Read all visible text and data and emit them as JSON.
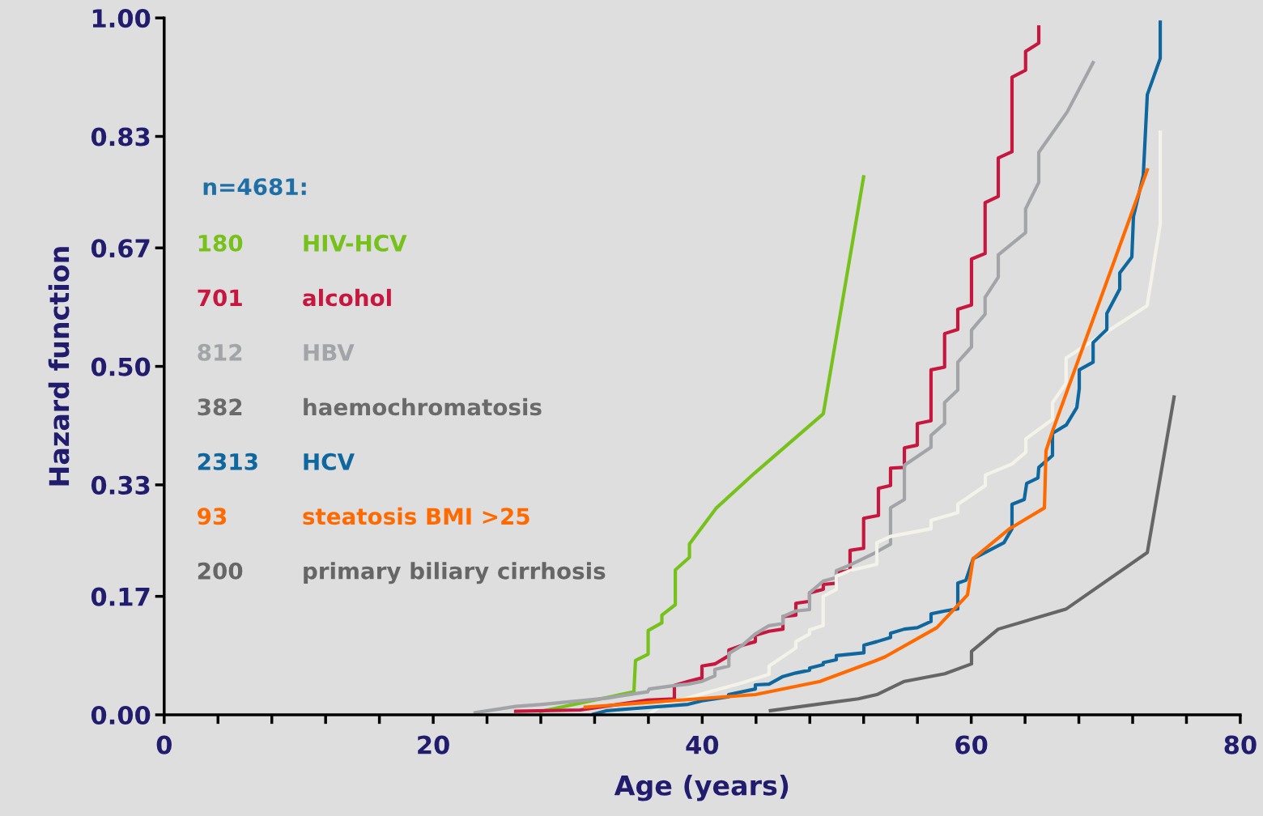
{
  "chart_data": {
    "type": "line",
    "xlabel": "Age (years)",
    "ylabel": "Hazard function",
    "legend_title": "n=4681:",
    "legend": false,
    "grid": false,
    "xlim": [
      0,
      80
    ],
    "ylim": [
      0,
      1.0
    ],
    "xticks": [
      0,
      {
        "value": 4,
        "label": null
      },
      {
        "value": 8,
        "label": null
      },
      {
        "value": 12,
        "label": null
      },
      {
        "value": 16,
        "label": null
      },
      20,
      {
        "value": 24,
        "label": null
      },
      {
        "value": 28,
        "label": null
      },
      {
        "value": 32,
        "label": null
      },
      {
        "value": 36,
        "label": null
      },
      40,
      {
        "value": 44,
        "label": null
      },
      {
        "value": 48,
        "label": null
      },
      {
        "value": 52,
        "label": null
      },
      {
        "value": 56,
        "label": null
      },
      60,
      {
        "value": 64,
        "label": null
      },
      {
        "value": 68,
        "label": null
      },
      {
        "value": 72,
        "label": null
      },
      {
        "value": 76,
        "label": null
      },
      80
    ],
    "yticks": [
      {
        "value": 0,
        "label": "0.00"
      },
      0.17,
      0.33,
      {
        "value": 0.5,
        "label": "0.50"
      },
      0.67,
      0.83,
      {
        "value": 1.0,
        "label": "1.00"
      }
    ],
    "series": [
      {
        "name": "180 HIV-HCV",
        "color": "#76c11a",
        "x": [
          28.0,
          34.92,
          35.04,
          35.98,
          35.98,
          37.0,
          37.0,
          38.0,
          38.0,
          39.05,
          39.05,
          41.06,
          43.9,
          49.0,
          52.0
        ],
        "values": [
          0.005,
          0.033,
          0.078,
          0.087,
          0.121,
          0.132,
          0.143,
          0.158,
          0.208,
          0.226,
          0.245,
          0.297,
          0.347,
          0.432,
          0.772
        ]
      },
      {
        "name": "701 alcohol",
        "color": "#c8173f",
        "x": [
          26.13,
          30.94,
          35.94,
          37.93,
          37.93,
          38.95,
          39.98,
          39.98,
          40.94,
          41.98,
          41.98,
          43.0,
          43.95,
          43.95,
          44.97,
          46.0,
          46.0,
          46.96,
          46.96,
          47.98,
          47.98,
          49.0,
          49.0,
          49.97,
          49.97,
          50.99,
          50.99,
          52.0,
          52.0,
          53.1,
          53.1,
          54.0,
          54.0,
          55.03,
          55.03,
          55.99,
          55.99,
          57.01,
          57.01,
          58.02,
          58.02,
          59.0,
          59.0,
          60.02,
          60.02,
          61.03,
          61.03,
          62.01,
          62.01,
          63.03,
          63.03,
          64.04,
          64.04,
          65.02,
          65.02
        ],
        "values": [
          0.005,
          0.007,
          0.021,
          0.023,
          0.042,
          0.048,
          0.053,
          0.07,
          0.073,
          0.085,
          0.093,
          0.1,
          0.105,
          0.114,
          0.12,
          0.123,
          0.141,
          0.143,
          0.16,
          0.163,
          0.175,
          0.18,
          0.187,
          0.189,
          0.204,
          0.207,
          0.236,
          0.239,
          0.282,
          0.286,
          0.325,
          0.329,
          0.354,
          0.355,
          0.383,
          0.387,
          0.418,
          0.422,
          0.495,
          0.499,
          0.547,
          0.553,
          0.582,
          0.588,
          0.654,
          0.662,
          0.735,
          0.744,
          0.799,
          0.808,
          0.915,
          0.925,
          0.952,
          0.964,
          0.987
        ]
      },
      {
        "name": "812 HBV",
        "color": "#a2a4a8",
        "x": [
          23.12,
          26.13,
          28.12,
          32.93,
          34.92,
          35.94,
          36.06,
          37.93,
          38.95,
          39.98,
          40.94,
          40.94,
          41.98,
          41.98,
          43.0,
          43.95,
          44.97,
          46.0,
          46.0,
          46.96,
          47.98,
          47.98,
          49.0,
          49.97,
          49.97,
          50.99,
          52.8,
          54.0,
          54.0,
          55.03,
          55.03,
          57.01,
          57.01,
          58.02,
          58.02,
          59.0,
          59.0,
          60.02,
          60.02,
          61.03,
          61.03,
          62.01,
          62.01,
          64.04,
          64.04,
          65.02,
          65.02,
          67.13,
          69.06
        ],
        "values": [
          0.003,
          0.012,
          0.015,
          0.024,
          0.03,
          0.033,
          0.037,
          0.042,
          0.044,
          0.048,
          0.056,
          0.065,
          0.07,
          0.088,
          0.1,
          0.116,
          0.128,
          0.131,
          0.141,
          0.149,
          0.151,
          0.175,
          0.192,
          0.197,
          0.207,
          0.215,
          0.232,
          0.245,
          0.297,
          0.309,
          0.358,
          0.384,
          0.401,
          0.418,
          0.448,
          0.466,
          0.506,
          0.528,
          0.552,
          0.575,
          0.599,
          0.628,
          0.66,
          0.692,
          0.726,
          0.764,
          0.807,
          0.865,
          0.936
        ]
      },
      {
        "name": "382 haemochromatosis",
        "color": "#f3f3ea",
        "x": [
          36.04,
          36.95,
          39.96,
          42.97,
          44.97,
          44.97,
          46.96,
          46.96,
          47.98,
          47.98,
          48.99,
          48.99,
          49.97,
          49.97,
          50.99,
          52.98,
          52.98,
          54.0,
          57.01,
          57.01,
          59.0,
          59.0,
          61.05,
          61.05,
          63.03,
          64.06,
          64.06,
          66.04,
          66.04,
          67.05,
          67.05,
          73.07,
          74.05,
          74.05
        ],
        "values": [
          0.001,
          0.013,
          0.03,
          0.046,
          0.058,
          0.07,
          0.096,
          0.105,
          0.116,
          0.122,
          0.128,
          0.17,
          0.18,
          0.199,
          0.207,
          0.216,
          0.247,
          0.256,
          0.267,
          0.279,
          0.29,
          0.302,
          0.329,
          0.344,
          0.36,
          0.377,
          0.396,
          0.424,
          0.448,
          0.476,
          0.512,
          0.587,
          0.704,
          0.836
        ]
      },
      {
        "name": "2313 HCV",
        "color": "#0e679e",
        "x": [
          31.91,
          32.93,
          34.92,
          36.97,
          38.95,
          39.98,
          41.96,
          41.96,
          43.95,
          43.95,
          44.97,
          46.0,
          46.96,
          47.98,
          47.98,
          49.0,
          49.0,
          49.97,
          49.97,
          52.02,
          52.02,
          52.98,
          54.0,
          54.0,
          55.03,
          55.99,
          57.01,
          57.01,
          58.04,
          59.0,
          59.0,
          59.6,
          60.14,
          61.05,
          62.43,
          63.03,
          63.03,
          63.94,
          64.12,
          64.96,
          65.02,
          66.04,
          66.04,
          67.07,
          67.85,
          68.03,
          68.03,
          69.06,
          69.06,
          70.08,
          70.08,
          71.04,
          71.04,
          71.94,
          72.06,
          72.79,
          73.09,
          74.05,
          74.05
        ],
        "values": [
          0.001,
          0.006,
          0.009,
          0.012,
          0.015,
          0.02,
          0.026,
          0.029,
          0.037,
          0.043,
          0.044,
          0.055,
          0.06,
          0.064,
          0.067,
          0.072,
          0.075,
          0.079,
          0.085,
          0.089,
          0.1,
          0.105,
          0.111,
          0.117,
          0.123,
          0.125,
          0.134,
          0.145,
          0.149,
          0.152,
          0.189,
          0.193,
          0.224,
          0.233,
          0.247,
          0.267,
          0.302,
          0.309,
          0.332,
          0.34,
          0.355,
          0.372,
          0.404,
          0.416,
          0.441,
          0.468,
          0.495,
          0.506,
          0.534,
          0.553,
          0.576,
          0.611,
          0.634,
          0.657,
          0.715,
          0.774,
          0.89,
          0.942,
          0.994
        ]
      },
      {
        "name": "93 steatosis BMI >25",
        "color": "#ff6a00",
        "x": [
          31.31,
          43.95,
          48.77,
          52.8,
          53.58,
          57.44,
          59.72,
          60.14,
          62.85,
          65.44,
          65.56,
          66.04,
          73.09
        ],
        "values": [
          0.011,
          0.029,
          0.048,
          0.077,
          0.083,
          0.125,
          0.172,
          0.224,
          0.267,
          0.297,
          0.379,
          0.407,
          0.782
        ]
      },
      {
        "name": "200 primary biliary cirrhosis",
        "color": "#666666",
        "x": [
          45.07,
          51.6,
          52.98,
          55.03,
          58.04,
          60.02,
          60.02,
          62.01,
          67.07,
          73.09,
          75.08
        ],
        "values": [
          0.006,
          0.023,
          0.029,
          0.048,
          0.059,
          0.073,
          0.091,
          0.123,
          0.152,
          0.233,
          0.456
        ]
      }
    ]
  }
}
